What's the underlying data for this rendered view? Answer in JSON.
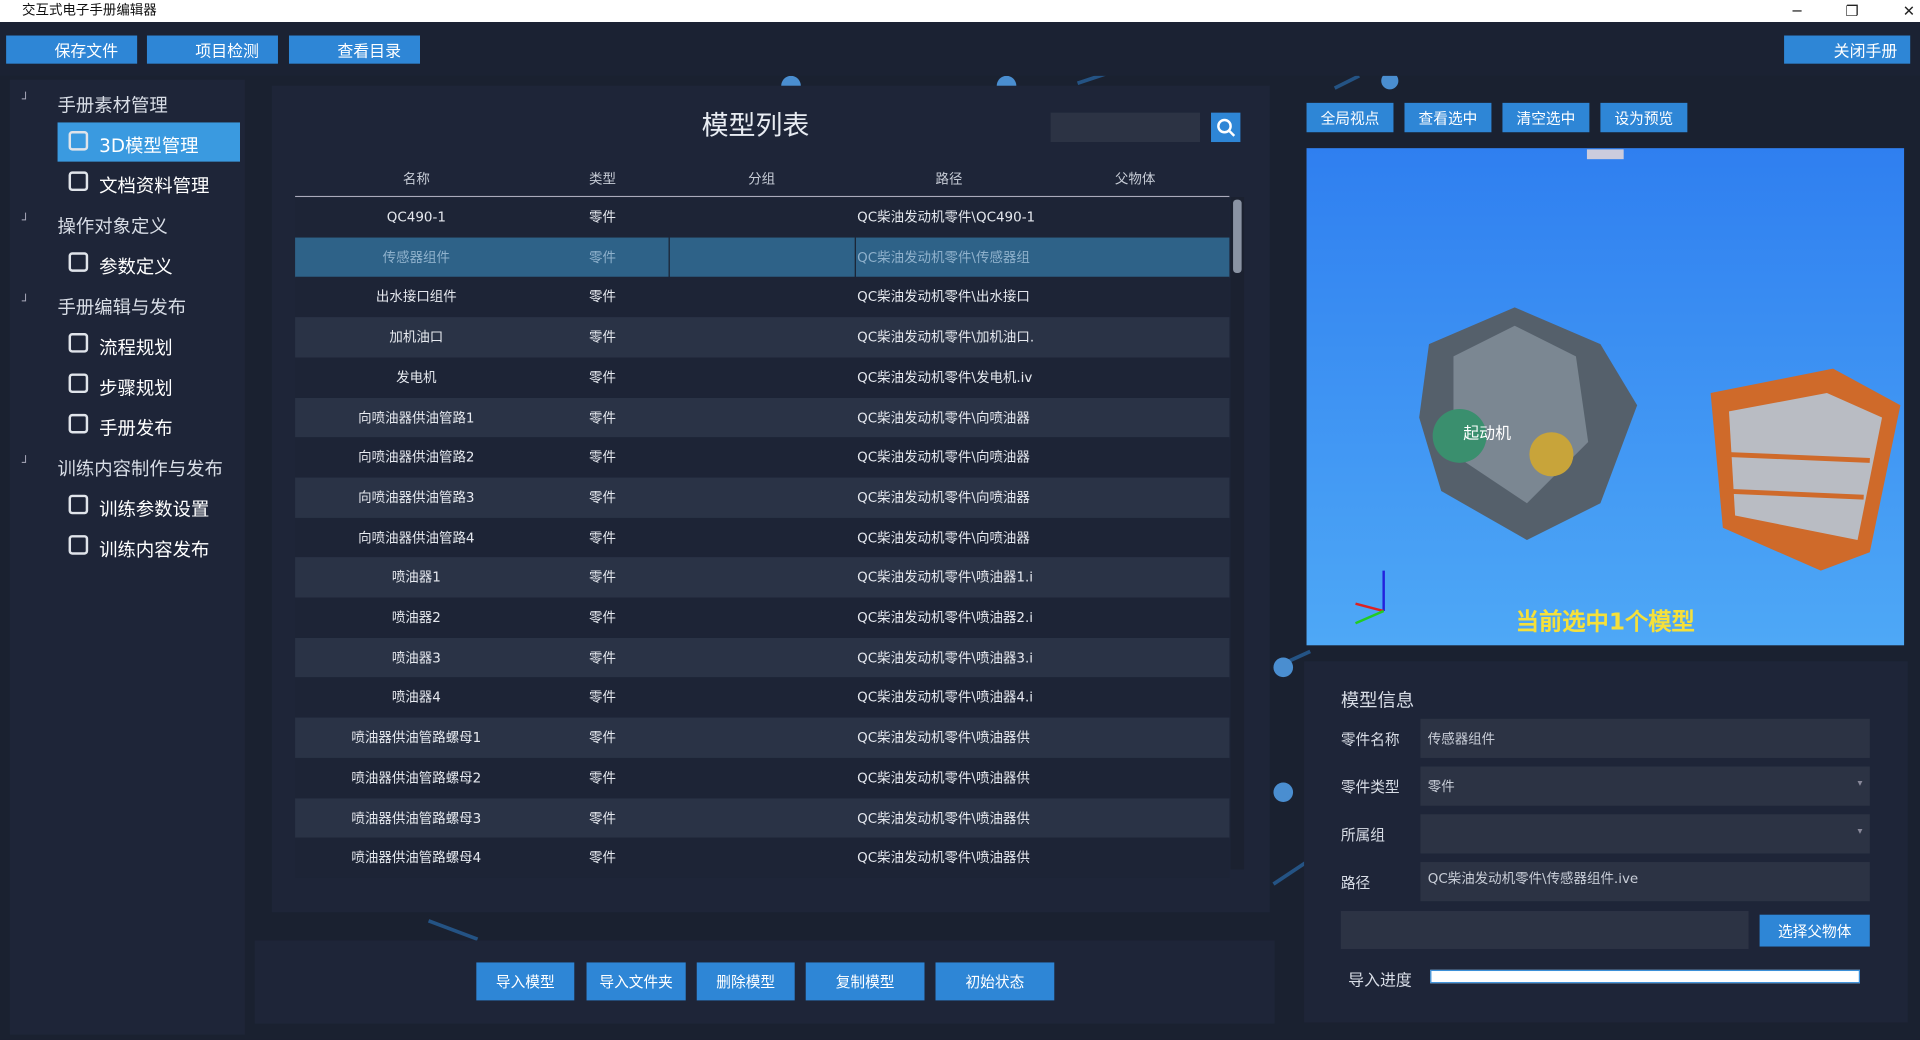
{
  "window": {
    "title": "交互式电子手册编辑器"
  },
  "toolbar": {
    "buttons": [
      "保存文件",
      "项目检测",
      "查看目录"
    ],
    "close": "关闭手册"
  },
  "sidebar": {
    "groups": [
      {
        "label": "手册素材管理",
        "items": [
          "3D模型管理",
          "文档资料管理"
        ]
      },
      {
        "label": "操作对象定义",
        "items": [
          "参数定义"
        ]
      },
      {
        "label": "手册编辑与发布",
        "items": [
          "流程规划",
          "步骤规划",
          "手册发布"
        ]
      },
      {
        "label": "训练内容制作与发布",
        "items": [
          "训练参数设置",
          "训练内容发布"
        ]
      }
    ],
    "active": "3D模型管理"
  },
  "model_list": {
    "title": "模型列表",
    "columns": [
      "名称",
      "类型",
      "分组",
      "路径",
      "父物体"
    ],
    "rows": [
      [
        "QC490-1",
        "零件",
        "QC柴油发动机零件\\QC490-1"
      ],
      [
        "传感器组件",
        "零件",
        "QC柴油发动机零件\\传感器组"
      ],
      [
        "出水接口组件",
        "零件",
        "QC柴油发动机零件\\出水接口"
      ],
      [
        "加机油口",
        "零件",
        "QC柴油发动机零件\\加机油口."
      ],
      [
        "发电机",
        "零件",
        "QC柴油发动机零件\\发电机.iv"
      ],
      [
        "向喷油器供油管路1",
        "零件",
        "QC柴油发动机零件\\向喷油器"
      ],
      [
        "向喷油器供油管路2",
        "零件",
        "QC柴油发动机零件\\向喷油器"
      ],
      [
        "向喷油器供油管路3",
        "零件",
        "QC柴油发动机零件\\向喷油器"
      ],
      [
        "向喷油器供油管路4",
        "零件",
        "QC柴油发动机零件\\向喷油器"
      ],
      [
        "喷油器1",
        "零件",
        "QC柴油发动机零件\\喷油器1.i"
      ],
      [
        "喷油器2",
        "零件",
        "QC柴油发动机零件\\喷油器2.i"
      ],
      [
        "喷油器3",
        "零件",
        "QC柴油发动机零件\\喷油器3.i"
      ],
      [
        "喷油器4",
        "零件",
        "QC柴油发动机零件\\喷油器4.i"
      ],
      [
        "喷油器供油管路螺母1",
        "零件",
        "QC柴油发动机零件\\喷油器供"
      ],
      [
        "喷油器供油管路螺母2",
        "零件",
        "QC柴油发动机零件\\喷油器供"
      ],
      [
        "喷油器供油管路螺母3",
        "零件",
        "QC柴油发动机零件\\喷油器供"
      ],
      [
        "喷油器供油管路螺母4",
        "零件",
        "QC柴油发动机零件\\喷油器供"
      ]
    ],
    "selected_row": 1,
    "actions": [
      "导入模型",
      "导入文件夹",
      "删除模型",
      "复制模型",
      "初始状态"
    ]
  },
  "viewport": {
    "buttons": [
      "全局视点",
      "查看选中",
      "清空选中",
      "设为预览"
    ],
    "part_label": "起动机",
    "status": "当前选中1个模型"
  },
  "model_info": {
    "title": "模型信息",
    "fields": [
      {
        "label": "零件名称",
        "value": "传感器组件"
      },
      {
        "label": "零件类型",
        "value": "零件"
      },
      {
        "label": "所属组"
      },
      {
        "label": "路径",
        "value": "QC柴油发动机零件\\传感器组件.ive"
      }
    ],
    "parent_button": "选择父物体",
    "progress_label": "导入进度"
  }
}
